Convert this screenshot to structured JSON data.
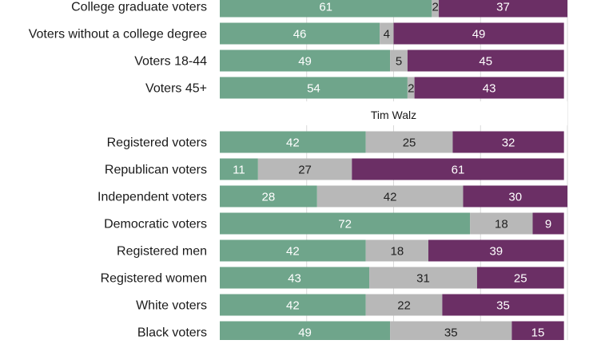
{
  "colors": {
    "favorable": "#6fa58b",
    "neutral": "#b8b8b8",
    "unfavorable": "#6b2f65",
    "label_light": "#ffffff",
    "label_dark": "#222222",
    "grid": "#d9d9d9"
  },
  "chart_data": {
    "type": "bar",
    "orientation": "horizontal",
    "stacked": true,
    "xlim": [
      0,
      100
    ],
    "grid": true,
    "legend": "none",
    "series": [
      {
        "key": "a",
        "color": "#6fa58b"
      },
      {
        "key": "b",
        "color": "#b8b8b8"
      },
      {
        "key": "c",
        "color": "#6b2f65"
      }
    ],
    "sections": [
      {
        "title": "",
        "rows": [
          {
            "label": "College graduate voters",
            "values": [
              61,
              2,
              37
            ]
          },
          {
            "label": "Voters without a college degree",
            "values": [
              46,
              4,
              49
            ]
          },
          {
            "label": "Voters 18-44",
            "values": [
              49,
              5,
              45
            ]
          },
          {
            "label": "Voters  45+",
            "values": [
              54,
              2,
              43
            ]
          }
        ]
      },
      {
        "title": "Tim Walz",
        "rows": [
          {
            "label": "Registered voters",
            "values": [
              42,
              25,
              32
            ]
          },
          {
            "label": "Republican voters",
            "values": [
              11,
              27,
              61
            ]
          },
          {
            "label": "Independent voters",
            "values": [
              28,
              42,
              30
            ]
          },
          {
            "label": "Democratic voters",
            "values": [
              72,
              18,
              9
            ]
          },
          {
            "label": "Registered men",
            "values": [
              42,
              18,
              39
            ]
          },
          {
            "label": "Registered women",
            "values": [
              43,
              31,
              25
            ]
          },
          {
            "label": "White voters",
            "values": [
              42,
              22,
              35
            ]
          },
          {
            "label": "Black voters",
            "values": [
              49,
              35,
              15
            ]
          }
        ]
      }
    ]
  }
}
